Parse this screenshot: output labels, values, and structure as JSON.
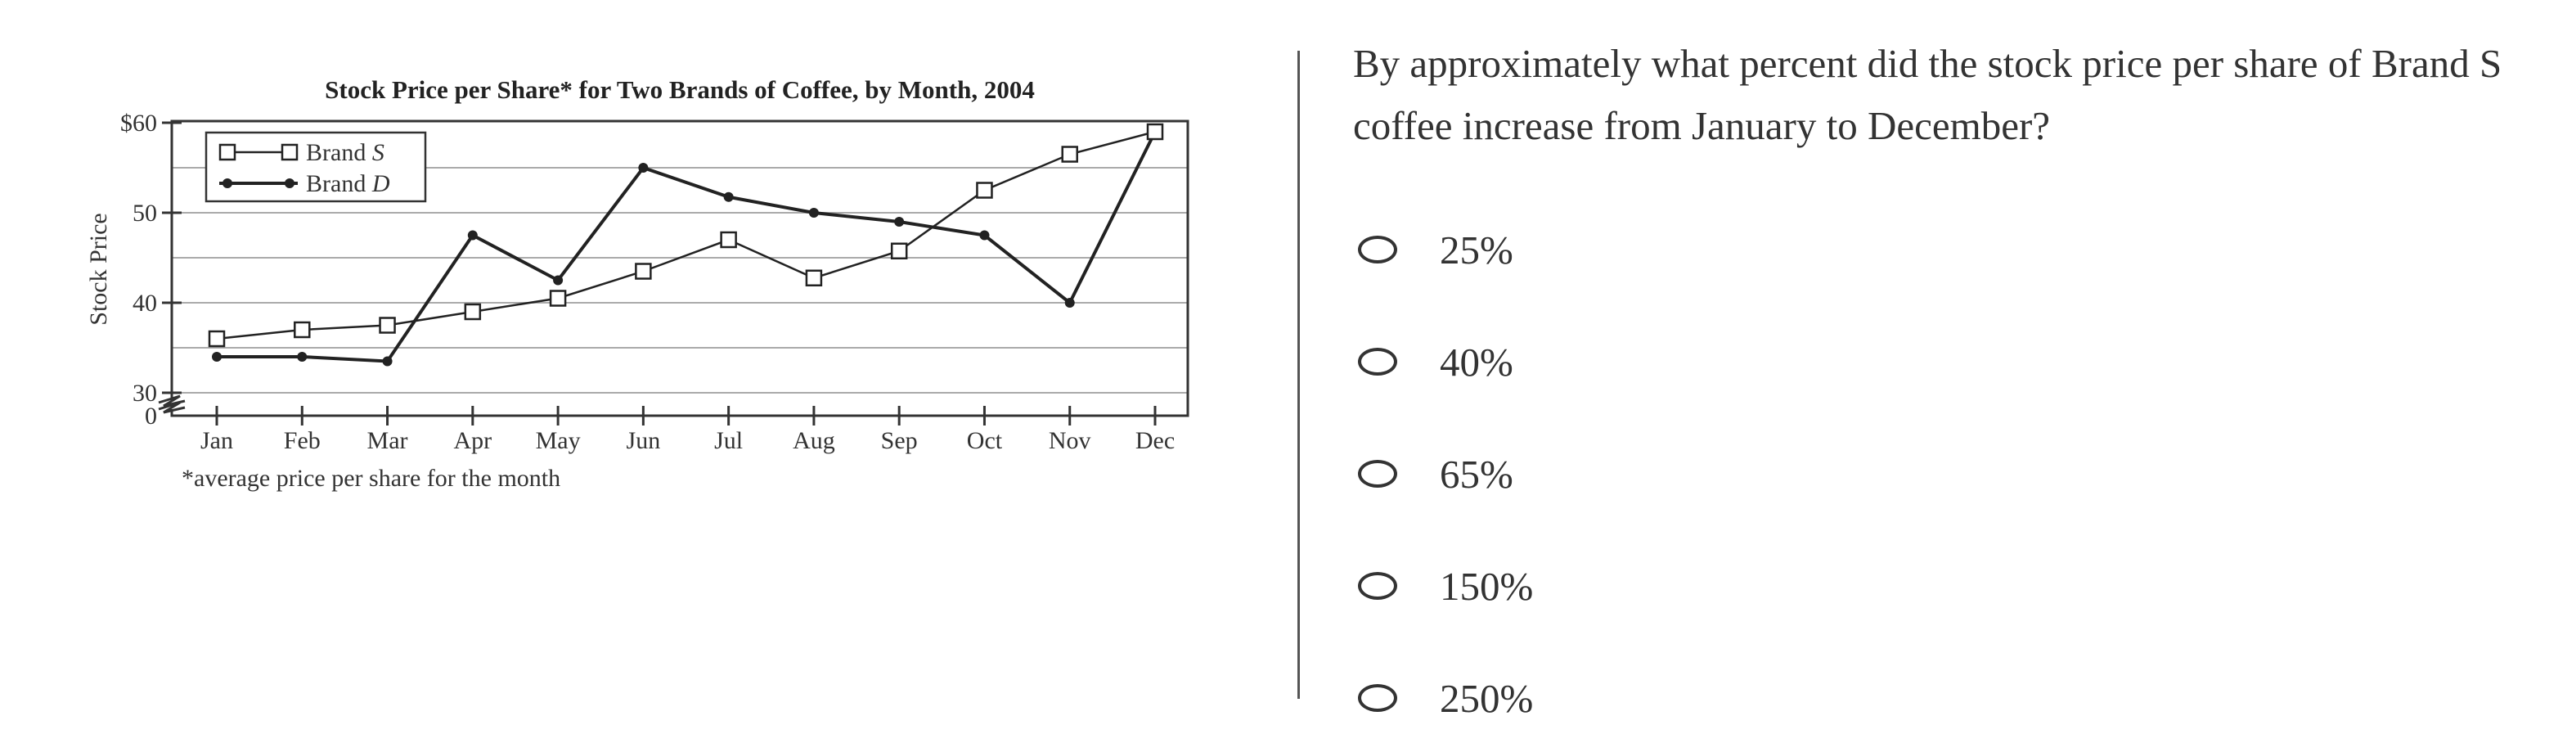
{
  "chart_data": {
    "type": "line",
    "title": "Stock Price per Share* for Two Brands of Coffee, by Month, 2004",
    "ylabel": "Stock Price",
    "xlabel": "",
    "footnote": "*average price per share for the month",
    "categories": [
      "Jan",
      "Feb",
      "Mar",
      "Apr",
      "May",
      "Jun",
      "Jul",
      "Aug",
      "Sep",
      "Oct",
      "Nov",
      "Dec"
    ],
    "ylim": [
      30,
      60
    ],
    "yticks": [
      30,
      40,
      50,
      60
    ],
    "ytick_labels": [
      "30",
      "40",
      "50",
      "$60"
    ],
    "y_baseline_label": "0",
    "axis_break": true,
    "grid": "horizontal",
    "legend_position": "top-left",
    "series": [
      {
        "name": "Brand S",
        "marker": "open-square",
        "values": [
          36,
          37,
          37.5,
          39,
          40.5,
          43.5,
          47,
          42.75,
          45.75,
          52.5,
          56.5,
          59
        ]
      },
      {
        "name": "Brand D",
        "marker": "filled-circle",
        "values": [
          34,
          34,
          33.5,
          47.5,
          42.5,
          55,
          51.75,
          50,
          49,
          47.5,
          40,
          59
        ]
      }
    ],
    "colors": {
      "line": "#222222",
      "grid": "#aaaaaa",
      "axis": "#333333"
    }
  },
  "question": {
    "text": "By approximately what percent did the stock price per share of Brand S coffee increase from January to December?",
    "choices": [
      "25%",
      "40%",
      "65%",
      "150%",
      "250%"
    ]
  }
}
